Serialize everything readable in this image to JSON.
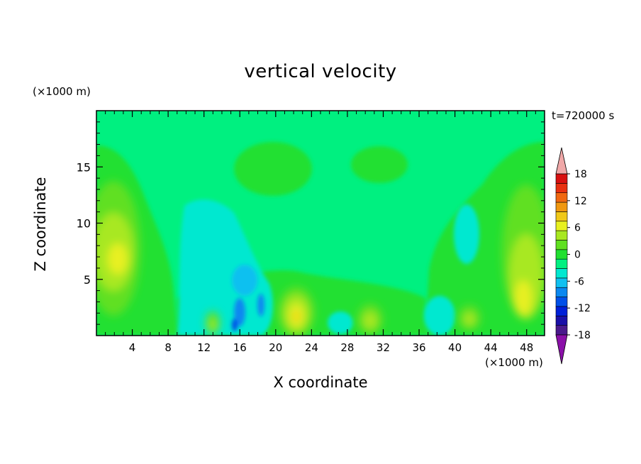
{
  "chart_data": {
    "type": "heatmap",
    "title": "vertical velocity",
    "xlabel": "X coordinate",
    "ylabel": "Z coordinate",
    "x_unit": "(×1000 m)",
    "y_unit": "(×1000 m)",
    "time_label": "t=720000 s",
    "xlim": [
      0,
      50
    ],
    "ylim": [
      0,
      20
    ],
    "x_ticks": [
      4,
      8,
      12,
      16,
      20,
      24,
      28,
      32,
      36,
      40,
      44,
      48
    ],
    "y_ticks": [
      5,
      10,
      15
    ],
    "colorbar": {
      "min": -21,
      "max": 21,
      "step": 3,
      "tick_values": [
        18,
        12,
        6,
        0,
        -6,
        -12,
        -18
      ],
      "colors": [
        "#8a10a8",
        "#4a1a8c",
        "#1a10a8",
        "#0020d8",
        "#0050e8",
        "#0a88f0",
        "#10c0f0",
        "#00e8d0",
        "#00f080",
        "#20e030",
        "#60e020",
        "#a8e820",
        "#e8f020",
        "#f0c818",
        "#f09810",
        "#f06810",
        "#e83010",
        "#d81010",
        "#f0a8a8"
      ]
    },
    "features": [
      {
        "kind": "updraft",
        "x": 22.2,
        "z": 1.8,
        "w": 6
      },
      {
        "kind": "updraft",
        "x": 2.8,
        "z": 6.8,
        "w": 6
      },
      {
        "kind": "updraft",
        "x": 48.0,
        "z": 3.0,
        "w": 6
      },
      {
        "kind": "updraft",
        "x": 30.3,
        "z": 1.5,
        "w": 3
      },
      {
        "kind": "updraft",
        "x": 13.0,
        "z": 1.0,
        "w": 3
      },
      {
        "kind": "updraft",
        "x": 41.7,
        "z": 1.6,
        "w": 3
      },
      {
        "kind": "downdraft",
        "x": 16.0,
        "z": 1.5,
        "w": -9
      },
      {
        "kind": "downdraft",
        "x": 18.8,
        "z": 2.5,
        "w": -6
      },
      {
        "kind": "downdraft",
        "x": 38.0,
        "z": 1.8,
        "w": -3
      },
      {
        "kind": "downdraft",
        "x": 13.0,
        "z": 7.5,
        "w": -3
      }
    ]
  }
}
